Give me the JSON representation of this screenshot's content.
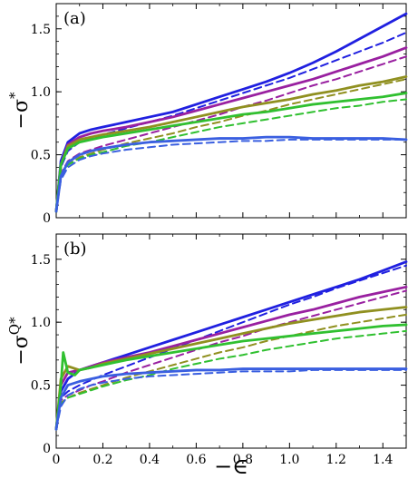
{
  "chart_data": [
    {
      "type": "line",
      "panel_label": "(a)",
      "ylabel": "−σ",
      "ylabel_sup": "*",
      "xlabel": "",
      "xlim": [
        0,
        1.5
      ],
      "ylim": [
        0,
        1.7
      ],
      "xticks": [
        0,
        0.2,
        0.4,
        0.6,
        0.8,
        1.0,
        1.2,
        1.4
      ],
      "xtick_labels": [
        "",
        "",
        "",
        "",
        "",
        "",
        "",
        ""
      ],
      "yticks": [
        0,
        0.5,
        1.0,
        1.5
      ],
      "ytick_labels": [
        "0",
        "0.5",
        "1.0",
        "1.5"
      ],
      "grid": false,
      "series": [
        {
          "color": "#2020e0",
          "style": "solid",
          "x": [
            0,
            0.02,
            0.05,
            0.1,
            0.15,
            0.2,
            0.3,
            0.4,
            0.5,
            0.6,
            0.7,
            0.8,
            0.9,
            1.0,
            1.1,
            1.2,
            1.3,
            1.4,
            1.5
          ],
          "y": [
            0.05,
            0.45,
            0.6,
            0.67,
            0.7,
            0.72,
            0.76,
            0.8,
            0.84,
            0.9,
            0.96,
            1.02,
            1.08,
            1.15,
            1.23,
            1.32,
            1.42,
            1.52,
            1.62
          ]
        },
        {
          "color": "#2020e0",
          "style": "dashed",
          "x": [
            0,
            0.02,
            0.05,
            0.1,
            0.15,
            0.2,
            0.3,
            0.4,
            0.5,
            0.6,
            0.7,
            0.8,
            0.9,
            1.0,
            1.1,
            1.2,
            1.3,
            1.4,
            1.5
          ],
          "y": [
            0.05,
            0.4,
            0.53,
            0.6,
            0.63,
            0.66,
            0.71,
            0.76,
            0.81,
            0.87,
            0.93,
            0.99,
            1.05,
            1.11,
            1.18,
            1.25,
            1.32,
            1.39,
            1.47
          ]
        },
        {
          "color": "#9920a0",
          "style": "solid",
          "x": [
            0,
            0.02,
            0.05,
            0.1,
            0.15,
            0.2,
            0.3,
            0.4,
            0.5,
            0.6,
            0.7,
            0.8,
            0.9,
            1.0,
            1.1,
            1.2,
            1.3,
            1.4,
            1.5
          ],
          "y": [
            0.05,
            0.42,
            0.58,
            0.64,
            0.67,
            0.69,
            0.72,
            0.76,
            0.8,
            0.85,
            0.9,
            0.95,
            1.0,
            1.05,
            1.1,
            1.16,
            1.22,
            1.28,
            1.35
          ]
        },
        {
          "color": "#9920a0",
          "style": "dashed",
          "x": [
            0,
            0.02,
            0.05,
            0.1,
            0.15,
            0.2,
            0.3,
            0.4,
            0.5,
            0.6,
            0.7,
            0.8,
            0.9,
            1.0,
            1.1,
            1.2,
            1.3,
            1.4,
            1.5
          ],
          "y": [
            0.05,
            0.35,
            0.45,
            0.51,
            0.54,
            0.57,
            0.62,
            0.67,
            0.72,
            0.77,
            0.82,
            0.88,
            0.93,
            0.99,
            1.05,
            1.1,
            1.16,
            1.22,
            1.28
          ]
        },
        {
          "color": "#909020",
          "style": "solid",
          "x": [
            0,
            0.02,
            0.05,
            0.1,
            0.15,
            0.2,
            0.3,
            0.4,
            0.5,
            0.6,
            0.7,
            0.8,
            0.9,
            1.0,
            1.1,
            1.2,
            1.3,
            1.4,
            1.5
          ],
          "y": [
            0.05,
            0.42,
            0.57,
            0.62,
            0.64,
            0.66,
            0.69,
            0.72,
            0.76,
            0.8,
            0.84,
            0.88,
            0.91,
            0.94,
            0.98,
            1.01,
            1.05,
            1.08,
            1.12
          ]
        },
        {
          "color": "#909020",
          "style": "dashed",
          "x": [
            0,
            0.02,
            0.05,
            0.1,
            0.15,
            0.2,
            0.3,
            0.4,
            0.5,
            0.6,
            0.7,
            0.8,
            0.9,
            1.0,
            1.1,
            1.2,
            1.3,
            1.4,
            1.5
          ],
          "y": [
            0.05,
            0.33,
            0.42,
            0.48,
            0.51,
            0.54,
            0.59,
            0.63,
            0.67,
            0.72,
            0.76,
            0.81,
            0.85,
            0.9,
            0.94,
            0.98,
            1.02,
            1.06,
            1.1
          ]
        },
        {
          "color": "#30c030",
          "style": "solid",
          "x": [
            0,
            0.02,
            0.05,
            0.1,
            0.15,
            0.2,
            0.3,
            0.4,
            0.5,
            0.6,
            0.7,
            0.8,
            0.9,
            1.0,
            1.1,
            1.2,
            1.3,
            1.4,
            1.5
          ],
          "y": [
            0.05,
            0.42,
            0.55,
            0.6,
            0.62,
            0.64,
            0.67,
            0.7,
            0.73,
            0.76,
            0.79,
            0.82,
            0.84,
            0.87,
            0.9,
            0.92,
            0.94,
            0.96,
            0.99
          ]
        },
        {
          "color": "#30c030",
          "style": "dashed",
          "x": [
            0,
            0.02,
            0.05,
            0.1,
            0.15,
            0.2,
            0.3,
            0.4,
            0.5,
            0.6,
            0.7,
            0.8,
            0.9,
            1.0,
            1.1,
            1.2,
            1.3,
            1.4,
            1.5
          ],
          "y": [
            0.05,
            0.32,
            0.42,
            0.47,
            0.5,
            0.52,
            0.57,
            0.6,
            0.64,
            0.68,
            0.72,
            0.75,
            0.78,
            0.81,
            0.84,
            0.87,
            0.89,
            0.92,
            0.94
          ]
        },
        {
          "color": "#3a5fe0",
          "style": "solid",
          "x": [
            0,
            0.02,
            0.05,
            0.1,
            0.15,
            0.2,
            0.3,
            0.4,
            0.5,
            0.6,
            0.7,
            0.8,
            0.9,
            1.0,
            1.1,
            1.2,
            1.3,
            1.4,
            1.5
          ],
          "y": [
            0.05,
            0.33,
            0.44,
            0.5,
            0.53,
            0.55,
            0.58,
            0.6,
            0.61,
            0.62,
            0.63,
            0.63,
            0.64,
            0.64,
            0.63,
            0.63,
            0.63,
            0.63,
            0.62
          ]
        },
        {
          "color": "#3a5fe0",
          "style": "dashed",
          "x": [
            0,
            0.02,
            0.05,
            0.1,
            0.15,
            0.2,
            0.3,
            0.4,
            0.5,
            0.6,
            0.7,
            0.8,
            0.9,
            1.0,
            1.1,
            1.2,
            1.3,
            1.4,
            1.5
          ],
          "y": [
            0.05,
            0.3,
            0.4,
            0.46,
            0.49,
            0.51,
            0.54,
            0.56,
            0.58,
            0.59,
            0.6,
            0.61,
            0.61,
            0.62,
            0.62,
            0.62,
            0.62,
            0.62,
            0.62
          ]
        }
      ]
    },
    {
      "type": "line",
      "panel_label": "(b)",
      "ylabel": "−σ",
      "ylabel_sup": "Q*",
      "xlabel": "−∈",
      "xlim": [
        0,
        1.5
      ],
      "ylim": [
        0,
        1.7
      ],
      "xticks": [
        0,
        0.2,
        0.4,
        0.6,
        0.8,
        1.0,
        1.2,
        1.4
      ],
      "xtick_labels": [
        "0",
        "0.2",
        "0.4",
        "0.6",
        "0.8",
        "1.0",
        "1.2",
        "1.4"
      ],
      "yticks": [
        0,
        0.5,
        1.0,
        1.5
      ],
      "ytick_labels": [
        "0",
        "0.5",
        "1.0",
        "1.5"
      ],
      "grid": false,
      "series": [
        {
          "color": "#2020e0",
          "style": "solid",
          "x": [
            0,
            0.02,
            0.05,
            0.1,
            0.15,
            0.2,
            0.3,
            0.4,
            0.5,
            0.6,
            0.7,
            0.8,
            0.9,
            1.0,
            1.1,
            1.2,
            1.3,
            1.4,
            1.5
          ],
          "y": [
            0.15,
            0.45,
            0.55,
            0.62,
            0.65,
            0.68,
            0.74,
            0.8,
            0.86,
            0.92,
            0.98,
            1.04,
            1.1,
            1.16,
            1.22,
            1.28,
            1.34,
            1.41,
            1.48
          ]
        },
        {
          "color": "#2020e0",
          "style": "dashed",
          "x": [
            0,
            0.02,
            0.05,
            0.1,
            0.15,
            0.2,
            0.3,
            0.4,
            0.5,
            0.6,
            0.7,
            0.8,
            0.9,
            1.0,
            1.1,
            1.2,
            1.3,
            1.4,
            1.5
          ],
          "y": [
            0.15,
            0.4,
            0.45,
            0.5,
            0.54,
            0.58,
            0.65,
            0.72,
            0.79,
            0.86,
            0.93,
            1.0,
            1.07,
            1.14,
            1.2,
            1.27,
            1.33,
            1.39,
            1.45
          ]
        },
        {
          "color": "#9920a0",
          "style": "solid",
          "x": [
            0,
            0.02,
            0.05,
            0.1,
            0.15,
            0.2,
            0.3,
            0.4,
            0.5,
            0.6,
            0.7,
            0.8,
            0.9,
            1.0,
            1.1,
            1.2,
            1.3,
            1.4,
            1.5
          ],
          "y": [
            0.15,
            0.5,
            0.6,
            0.62,
            0.65,
            0.68,
            0.72,
            0.76,
            0.81,
            0.86,
            0.91,
            0.96,
            1.01,
            1.06,
            1.1,
            1.15,
            1.2,
            1.24,
            1.28
          ]
        },
        {
          "color": "#9920a0",
          "style": "dashed",
          "x": [
            0,
            0.02,
            0.05,
            0.1,
            0.15,
            0.2,
            0.3,
            0.4,
            0.5,
            0.6,
            0.7,
            0.8,
            0.9,
            1.0,
            1.1,
            1.2,
            1.3,
            1.4,
            1.5
          ],
          "y": [
            0.15,
            0.38,
            0.42,
            0.46,
            0.5,
            0.53,
            0.6,
            0.66,
            0.72,
            0.78,
            0.84,
            0.89,
            0.95,
            1.0,
            1.05,
            1.1,
            1.15,
            1.2,
            1.25
          ]
        },
        {
          "color": "#909020",
          "style": "solid",
          "x": [
            0,
            0.02,
            0.05,
            0.1,
            0.15,
            0.2,
            0.3,
            0.4,
            0.5,
            0.6,
            0.7,
            0.8,
            0.9,
            1.0,
            1.1,
            1.2,
            1.3,
            1.4,
            1.5
          ],
          "y": [
            0.15,
            0.55,
            0.65,
            0.62,
            0.64,
            0.67,
            0.71,
            0.75,
            0.79,
            0.83,
            0.87,
            0.91,
            0.95,
            0.99,
            1.02,
            1.05,
            1.08,
            1.1,
            1.12
          ]
        },
        {
          "color": "#909020",
          "style": "dashed",
          "x": [
            0,
            0.02,
            0.05,
            0.1,
            0.15,
            0.2,
            0.3,
            0.4,
            0.5,
            0.6,
            0.7,
            0.8,
            0.9,
            1.0,
            1.1,
            1.2,
            1.3,
            1.4,
            1.5
          ],
          "y": [
            0.15,
            0.36,
            0.4,
            0.44,
            0.47,
            0.5,
            0.56,
            0.61,
            0.66,
            0.71,
            0.76,
            0.8,
            0.85,
            0.89,
            0.93,
            0.97,
            1.0,
            1.03,
            1.06
          ]
        },
        {
          "color": "#30c030",
          "style": "solid",
          "x": [
            0,
            0.02,
            0.03,
            0.05,
            0.08,
            0.1,
            0.15,
            0.2,
            0.3,
            0.4,
            0.5,
            0.6,
            0.7,
            0.8,
            0.9,
            1.0,
            1.1,
            1.2,
            1.3,
            1.4,
            1.5
          ],
          "y": [
            0.15,
            0.5,
            0.76,
            0.6,
            0.58,
            0.62,
            0.64,
            0.66,
            0.7,
            0.73,
            0.76,
            0.79,
            0.82,
            0.85,
            0.87,
            0.89,
            0.91,
            0.93,
            0.95,
            0.97,
            0.98
          ]
        },
        {
          "color": "#30c030",
          "style": "dashed",
          "x": [
            0,
            0.02,
            0.05,
            0.1,
            0.15,
            0.2,
            0.3,
            0.4,
            0.5,
            0.6,
            0.7,
            0.8,
            0.9,
            1.0,
            1.1,
            1.2,
            1.3,
            1.4,
            1.5
          ],
          "y": [
            0.15,
            0.35,
            0.4,
            0.43,
            0.46,
            0.49,
            0.54,
            0.58,
            0.63,
            0.67,
            0.71,
            0.74,
            0.78,
            0.81,
            0.84,
            0.87,
            0.89,
            0.91,
            0.93
          ]
        },
        {
          "color": "#3a5fe0",
          "style": "solid",
          "x": [
            0,
            0.02,
            0.05,
            0.1,
            0.15,
            0.2,
            0.3,
            0.4,
            0.5,
            0.6,
            0.7,
            0.8,
            0.9,
            1.0,
            1.1,
            1.2,
            1.3,
            1.4,
            1.5
          ],
          "y": [
            0.15,
            0.4,
            0.5,
            0.53,
            0.55,
            0.57,
            0.59,
            0.6,
            0.61,
            0.62,
            0.62,
            0.63,
            0.63,
            0.63,
            0.63,
            0.63,
            0.63,
            0.63,
            0.63
          ]
        },
        {
          "color": "#3a5fe0",
          "style": "dashed",
          "x": [
            0,
            0.02,
            0.05,
            0.1,
            0.15,
            0.2,
            0.3,
            0.4,
            0.5,
            0.6,
            0.7,
            0.8,
            0.9,
            1.0,
            1.1,
            1.2,
            1.3,
            1.4,
            1.5
          ],
          "y": [
            0.15,
            0.33,
            0.42,
            0.47,
            0.5,
            0.52,
            0.55,
            0.57,
            0.58,
            0.59,
            0.6,
            0.61,
            0.61,
            0.61,
            0.62,
            0.62,
            0.62,
            0.62,
            0.62
          ]
        }
      ]
    }
  ]
}
